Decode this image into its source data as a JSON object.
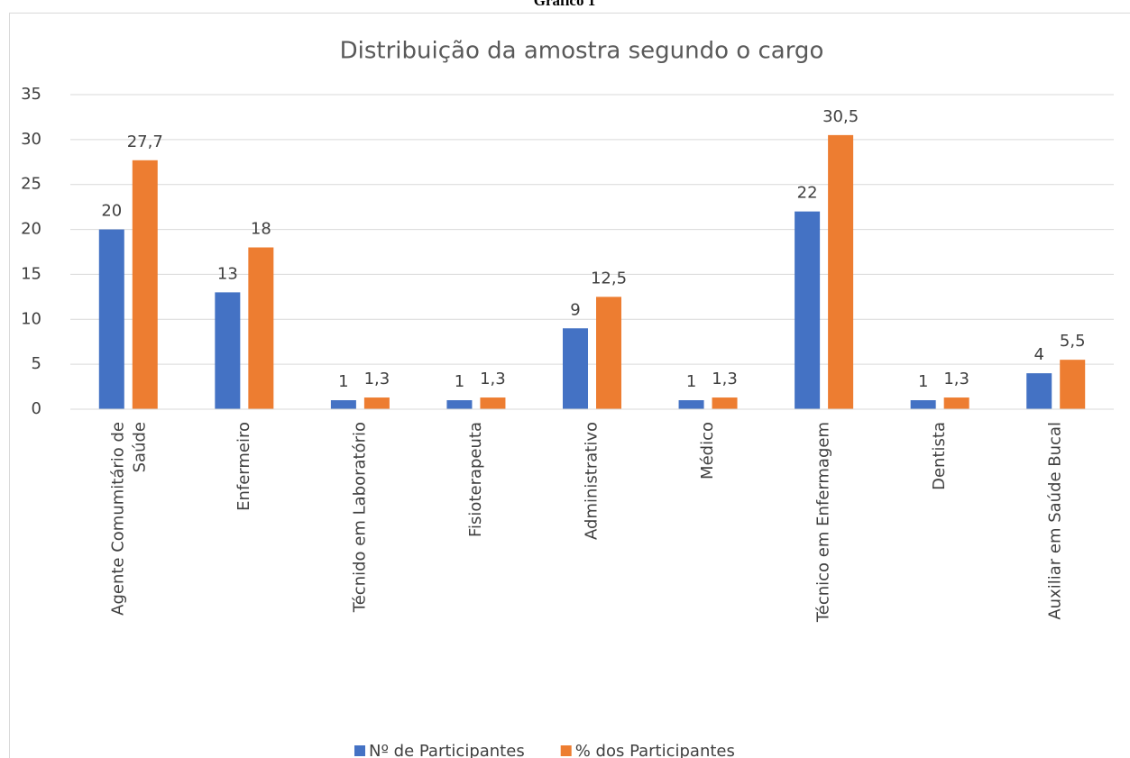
{
  "caption": "Gráfico 1",
  "chart_data": {
    "type": "bar",
    "title": "Distribuição da amostra segundo o cargo",
    "categories": [
      "Agente Comumitário de Saúde",
      "Enfermeiro",
      "Técnido em Laboratório",
      "Fisioterapeuta",
      "Administrativo",
      "Médico",
      "Técnico em Enfermagem",
      "Dentista",
      "Auxiliar em Saúde Bucal"
    ],
    "series": [
      {
        "name": "Nº de Participantes",
        "color": "#4472c4",
        "values": [
          20,
          13,
          1,
          1,
          9,
          1,
          22,
          1,
          4
        ]
      },
      {
        "name": "% dos Participantes",
        "color": "#ed7d31",
        "values": [
          27.7,
          18,
          1.3,
          1.3,
          12.5,
          1.3,
          30.5,
          1.3,
          5.5
        ],
        "value_labels": [
          "27,7",
          "18",
          "1,3",
          "1,3",
          "12,5",
          "1,3",
          "30,5",
          "1,3",
          "5,5"
        ]
      }
    ],
    "ylim": [
      0,
      35
    ],
    "yticks": [
      0,
      5,
      10,
      15,
      20,
      25,
      30,
      35
    ],
    "grid": true,
    "legend": "bottom"
  }
}
